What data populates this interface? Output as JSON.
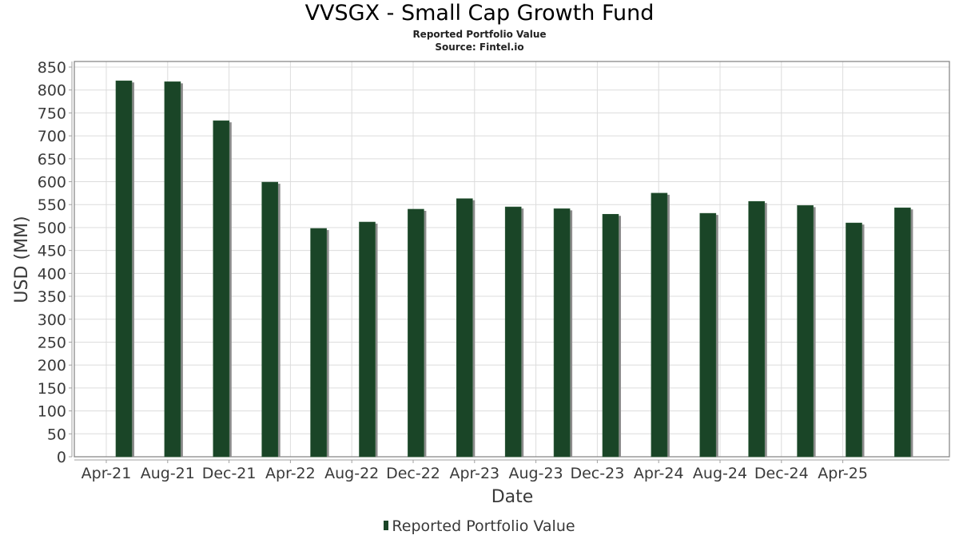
{
  "chart_data": {
    "type": "bar",
    "title": "VVSGX - Small Cap Growth Fund",
    "subtitle": "Reported Portfolio Value",
    "source": "Source: Fintel.io",
    "xlabel": "Date",
    "ylabel": "USD (MM)",
    "ylim": [
      0,
      850
    ],
    "y_ticks": [
      0,
      50,
      100,
      150,
      200,
      250,
      300,
      350,
      400,
      450,
      500,
      550,
      600,
      650,
      700,
      750,
      800,
      850
    ],
    "x_tick_labels": [
      "Apr-21",
      "Aug-21",
      "Dec-21",
      "Apr-22",
      "Aug-22",
      "Dec-22",
      "Apr-23",
      "Aug-23",
      "Dec-23",
      "Apr-24",
      "Aug-24",
      "Dec-24",
      "Apr-25"
    ],
    "grid": true,
    "legend_position": "bottom-center",
    "series": [
      {
        "name": "Reported Portfolio Value",
        "color": "#1a4527",
        "shadow_color": "#8c8c8c",
        "values": [
          820,
          818,
          733,
          599,
          498,
          512,
          540,
          563,
          545,
          541,
          529,
          575,
          531,
          557,
          548,
          510,
          543
        ]
      }
    ]
  }
}
